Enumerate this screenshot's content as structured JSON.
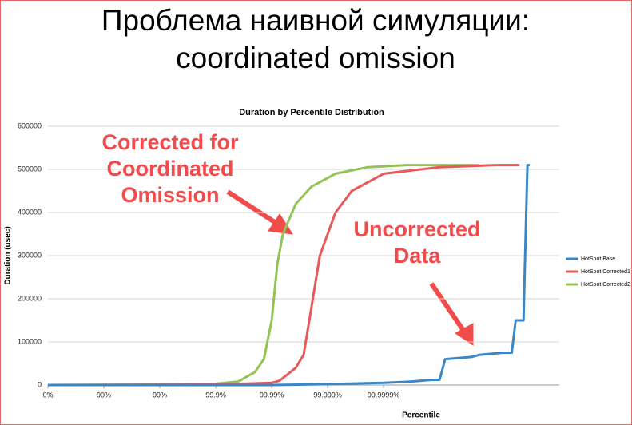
{
  "slide": {
    "title_lines": [
      "Проблема наивной симуляции:",
      "coordinated omission"
    ]
  },
  "chart_data": {
    "type": "line",
    "title": "Duration by Percentile Distribution",
    "x_label": "Percentile",
    "y_label": "Duration (usec)",
    "xlim": [
      0,
      9.14
    ],
    "xticks": [
      {
        "value": 0,
        "label": "0%"
      },
      {
        "value": 1,
        "label": "90%"
      },
      {
        "value": 2,
        "label": "99%"
      },
      {
        "value": 3,
        "label": "99.9%"
      },
      {
        "value": 4,
        "label": "99.99%"
      },
      {
        "value": 5,
        "label": "99.999%"
      },
      {
        "value": 6,
        "label": "99.9999%"
      }
    ],
    "ylim": [
      0,
      600000
    ],
    "yticks": [
      0,
      100000,
      200000,
      300000,
      400000,
      500000,
      600000
    ],
    "grid": true,
    "legend": "right",
    "series": [
      {
        "name": "HotSpot Base",
        "color": "#3a87c8",
        "x": [
          0,
          4,
          5,
          6,
          6.5,
          6.86,
          7.0,
          7.1,
          7.57,
          7.71,
          8.14,
          8.29,
          8.36,
          8.5,
          8.57,
          8.61
        ],
        "values": [
          0,
          0,
          2000,
          5000,
          8000,
          12000,
          12000,
          60000,
          65000,
          70000,
          75000,
          75000,
          150000,
          150000,
          510000,
          510000
        ]
      },
      {
        "name": "HotSpot Corrected1",
        "color": "#e8595a",
        "x": [
          0,
          3,
          4,
          4.14,
          4.43,
          4.57,
          4.71,
          4.86,
          5.14,
          5.43,
          6.0,
          7.0,
          8.0,
          8.43
        ],
        "values": [
          0,
          1000,
          5000,
          10000,
          40000,
          70000,
          180000,
          300000,
          400000,
          450000,
          490000,
          505000,
          510000,
          510000
        ]
      },
      {
        "name": "HotSpot Corrected2",
        "color": "#94c355",
        "x": [
          0,
          2,
          3,
          3.4,
          3.7,
          3.86,
          4.0,
          4.1,
          4.2,
          4.43,
          4.71,
          5.14,
          5.71,
          6.43,
          7.71
        ],
        "values": [
          0,
          1000,
          3000,
          8000,
          30000,
          60000,
          150000,
          280000,
          350000,
          420000,
          460000,
          490000,
          505000,
          510000,
          510000
        ]
      }
    ],
    "annotations": [
      {
        "lines": [
          "Corrected for",
          "Coordinated",
          "Omission"
        ]
      },
      {
        "lines": [
          "Uncorrected",
          "Data"
        ]
      }
    ]
  }
}
